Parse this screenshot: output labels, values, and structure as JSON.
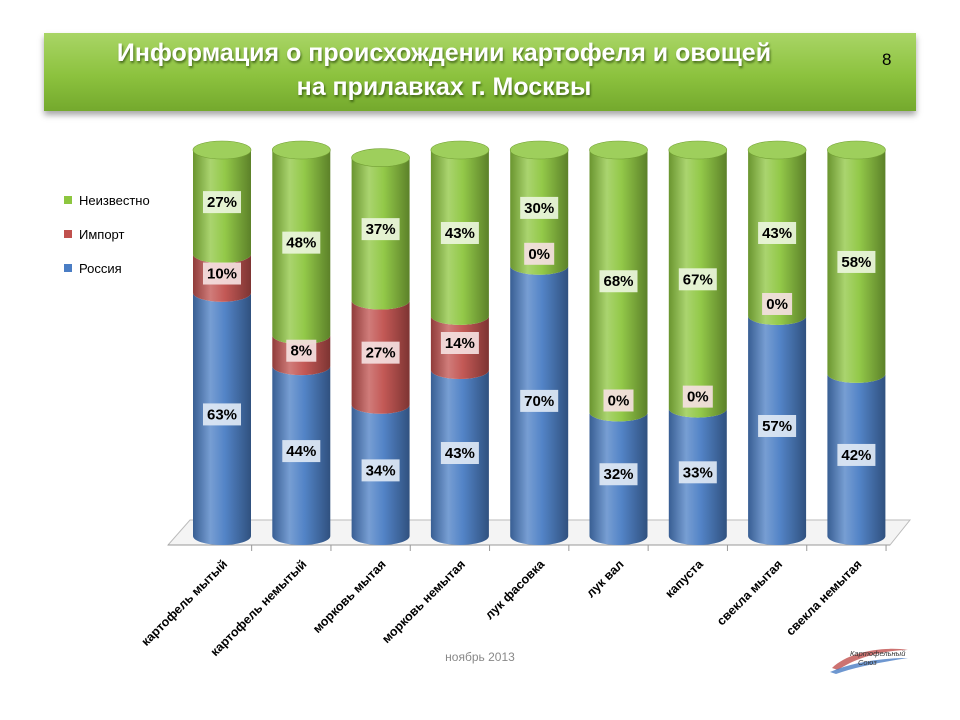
{
  "slide": {
    "title_line1": "Информация о происхождении картофеля и овощей",
    "title_line2": "на прилавках г. Москвы",
    "number": "8",
    "footer_date": "ноябрь 2013",
    "logo_text": "Картофельный Союз"
  },
  "chart_data": {
    "type": "bar",
    "stacked": true,
    "orientation": "vertical",
    "title": "",
    "categories": [
      "картофель мытый",
      "картофель немытый",
      "морковь мытая",
      "морковь немытая",
      "лук фасовка",
      "лук вал",
      "капуста",
      "свекла мытая",
      "свекла немытая"
    ],
    "series": [
      {
        "name": "Россия",
        "color": "#4a7dc4",
        "values": [
          63,
          44,
          34,
          43,
          70,
          32,
          33,
          57,
          42
        ],
        "labels": [
          "63%",
          "44%",
          "34%",
          "43%",
          "70%",
          "32%",
          "33%",
          "57%",
          "42%"
        ]
      },
      {
        "name": "Импорт",
        "color": "#c0504d",
        "values": [
          10,
          8,
          27,
          14,
          0,
          0,
          0,
          0,
          0
        ],
        "labels": [
          "10%",
          "8%",
          "27%",
          "14%",
          "0%",
          "0%",
          "0%",
          "0%",
          ""
        ]
      },
      {
        "name": "Неизвестно",
        "color": "#8dc63f",
        "values": [
          27,
          48,
          37,
          43,
          30,
          68,
          67,
          43,
          58
        ],
        "labels": [
          "27%",
          "48%",
          "37%",
          "43%",
          "30%",
          "68%",
          "67%",
          "43%",
          "58%"
        ]
      }
    ],
    "legend_order": [
      "Неизвестно",
      "Импорт",
      "Россия"
    ],
    "ylim": [
      0,
      100
    ],
    "legend_position": "left",
    "grid": false
  }
}
